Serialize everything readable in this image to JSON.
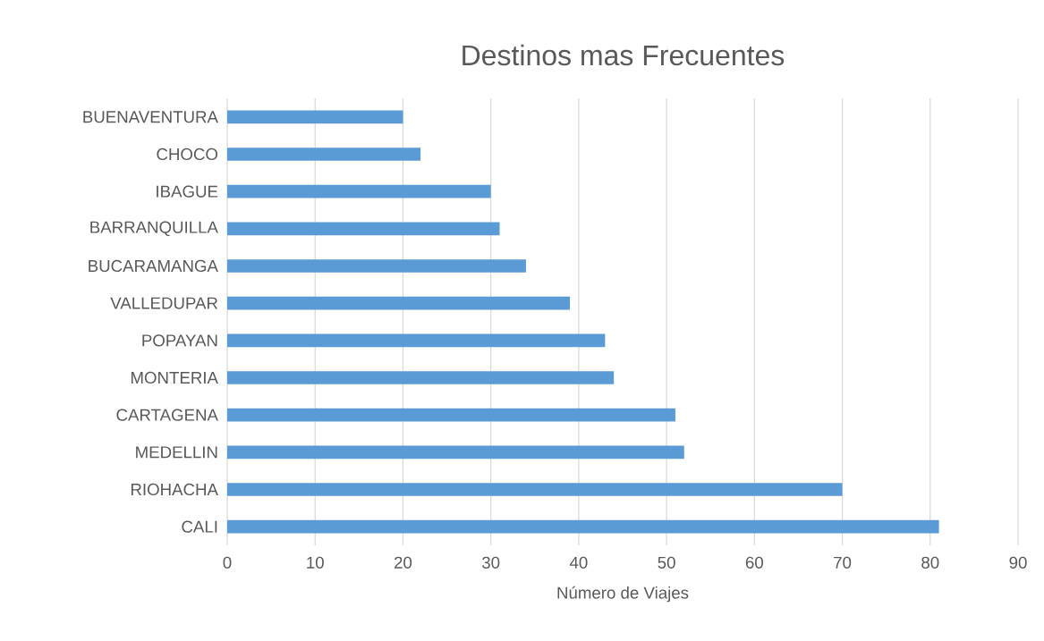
{
  "chart_data": {
    "type": "bar",
    "orientation": "horizontal",
    "title": "Destinos mas Frecuentes",
    "xlabel": "Número de Viajes",
    "categories": [
      "BUENAVENTURA",
      "CHOCO",
      "IBAGUE",
      "BARRANQUILLA",
      "BUCARAMANGA",
      "VALLEDUPAR",
      "POPAYAN",
      "MONTERIA",
      "CARTAGENA",
      "MEDELLIN",
      "RIOHACHA",
      "CALI"
    ],
    "values": [
      20,
      22,
      30,
      31,
      34,
      39,
      43,
      44,
      51,
      52,
      70,
      81
    ],
    "color": "#5b9bd5",
    "xlim": [
      0,
      90
    ],
    "xticks": [
      0,
      10,
      20,
      30,
      40,
      50,
      60,
      70,
      80,
      90
    ],
    "grid": "x"
  }
}
